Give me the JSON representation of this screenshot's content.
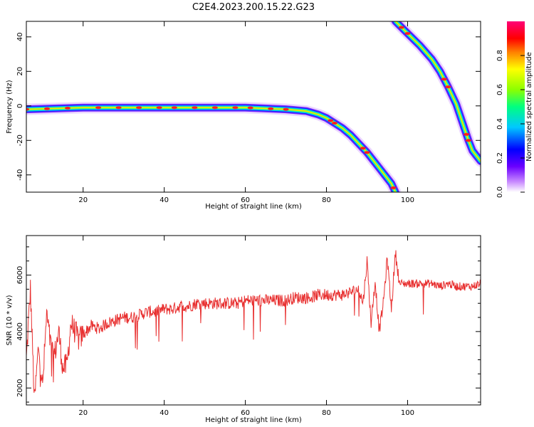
{
  "figure": {
    "title": "C2E4.2023.200.15.22.G23"
  },
  "chart_data": [
    {
      "type": "heatmap",
      "xlabel": "Height of straight line (km)",
      "ylabel": "Frequency (Hz)",
      "xlim": [
        6,
        118
      ],
      "ylim": [
        -50,
        49
      ],
      "x_ticks": [
        20,
        40,
        60,
        80,
        100
      ],
      "y_ticks": [
        -40,
        -20,
        0,
        20,
        40
      ],
      "colorbar": {
        "label": "Normalized spectral amplitude",
        "range": [
          0,
          1
        ],
        "ticks": [
          0.0,
          0.2,
          0.4,
          0.6,
          0.8
        ],
        "colormap": [
          "#ffffff",
          "#c98cff",
          "#6a00ff",
          "#0000ff",
          "#00c8ff",
          "#00ff80",
          "#8cff00",
          "#ffff00",
          "#ff8000",
          "#ff0000",
          "#ff0077"
        ]
      },
      "traces": [
        {
          "name": "",
          "points": [
            [
              6,
              -2
            ],
            [
              20,
              -1
            ],
            [
              40,
              -1
            ],
            [
              60,
              -1
            ],
            [
              70,
              -2
            ],
            [
              75,
              -3
            ],
            [
              78,
              -5
            ],
            [
              80,
              -7
            ],
            [
              82,
              -10
            ],
            [
              84,
              -13
            ],
            [
              86,
              -17
            ],
            [
              88,
              -22
            ],
            [
              90,
              -27
            ],
            [
              92,
              -33
            ],
            [
              94,
              -39
            ],
            [
              96,
              -45
            ],
            [
              97,
              -50
            ]
          ]
        },
        {
          "name": "",
          "points": [
            [
              97,
              49
            ],
            [
              100,
              42
            ],
            [
              103,
              35
            ],
            [
              106,
              27
            ],
            [
              108,
              20
            ],
            [
              110,
              11
            ],
            [
              112,
              1
            ],
            [
              113,
              -6
            ],
            [
              114,
              -13
            ],
            [
              115,
              -20
            ],
            [
              116,
              -26
            ],
            [
              117,
              -29
            ],
            [
              118,
              -32
            ]
          ]
        }
      ]
    },
    {
      "type": "line",
      "xlabel": "Height of straight line (km)",
      "ylabel": "SNR (10 * v/v)",
      "xlim": [
        6,
        118
      ],
      "ylim": [
        1400,
        7400
      ],
      "x_ticks": [
        20,
        40,
        60,
        80,
        100
      ],
      "y_ticks": [
        2000,
        4000,
        6000
      ],
      "color": "#e83030",
      "series": [
        {
          "name": "",
          "x": [
            6,
            7,
            8,
            9,
            10,
            11,
            12,
            13,
            14,
            15,
            16,
            17,
            18,
            19,
            20,
            22,
            24,
            26,
            28,
            30,
            32,
            34,
            36,
            38,
            40,
            42,
            44,
            46,
            48,
            50,
            52,
            54,
            56,
            58,
            60,
            62,
            64,
            66,
            68,
            70,
            72,
            74,
            76,
            78,
            80,
            82,
            84,
            86,
            88,
            89,
            90,
            91,
            92,
            93,
            94,
            95,
            96,
            97,
            98,
            100,
            102,
            104,
            106,
            108,
            110,
            112,
            114,
            116,
            118
          ],
          "values": [
            3000,
            5500,
            1500,
            3500,
            2000,
            4600,
            3500,
            3200,
            4000,
            2700,
            2800,
            4300,
            4000,
            3700,
            3900,
            4200,
            4100,
            4300,
            4400,
            4500,
            4500,
            4600,
            4700,
            4700,
            4800,
            4800,
            4900,
            4900,
            5000,
            5000,
            5000,
            5000,
            5000,
            5000,
            5100,
            5100,
            5100,
            5100,
            5100,
            5100,
            5200,
            5200,
            5200,
            5300,
            5300,
            5300,
            5300,
            5400,
            5500,
            5000,
            6500,
            4300,
            5800,
            4000,
            5000,
            6600,
            4800,
            6800,
            5700,
            5700,
            5700,
            5700,
            5700,
            5600,
            5700,
            5600,
            5600,
            5600,
            5700
          ]
        }
      ]
    }
  ]
}
